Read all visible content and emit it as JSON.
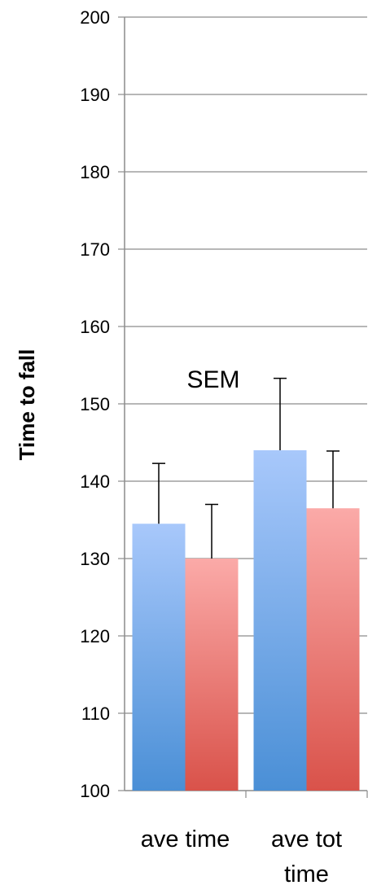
{
  "chart_data": {
    "type": "bar",
    "ylabel": "Time to fall",
    "xlabel": "",
    "ylim": [
      100,
      200
    ],
    "yticks": [
      100,
      110,
      120,
      130,
      140,
      150,
      160,
      170,
      180,
      190,
      200
    ],
    "grid": true,
    "categories": [
      "ave time",
      "ave tot time"
    ],
    "category_lines": [
      [
        "ave time"
      ],
      [
        "ave tot",
        "time"
      ]
    ],
    "series": [
      {
        "values": [
          134.5,
          144.0
        ],
        "errors": [
          7.8,
          9.3
        ],
        "color_top": "#a8c8fb",
        "color_bottom": "#4a8fd6"
      },
      {
        "values": [
          130.0,
          136.5
        ],
        "errors": [
          7.0,
          7.4
        ],
        "color_top": "#fbaaa8",
        "color_bottom": "#d9524a"
      }
    ],
    "annotation": "SEM"
  }
}
